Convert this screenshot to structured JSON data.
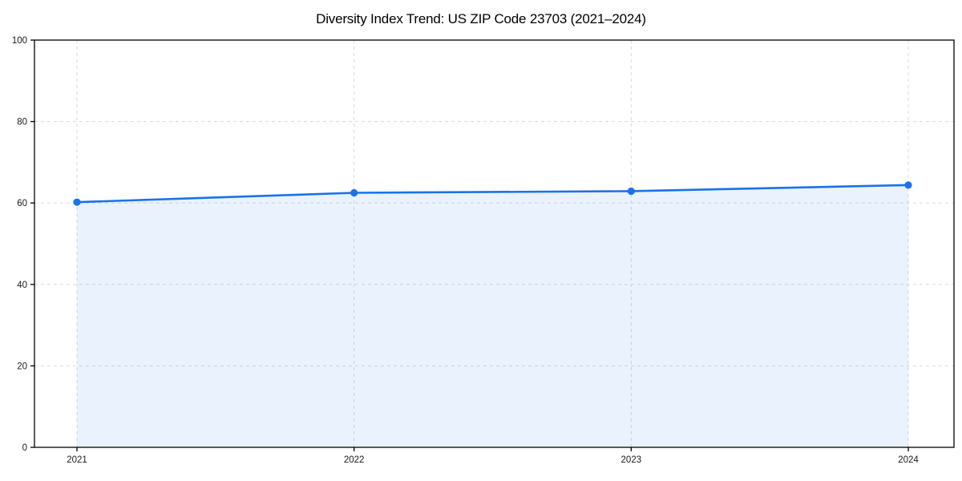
{
  "chart_data": {
    "type": "line",
    "title": "Diversity Index Trend: US ZIP Code 23703 (2021–2024)",
    "x": [
      2021,
      2022,
      2023,
      2024
    ],
    "series": [
      {
        "name": "Diversity Index",
        "values": [
          60.2,
          62.5,
          62.9,
          64.4
        ]
      }
    ],
    "xlabel": "",
    "ylabel": "",
    "ylim": [
      0,
      100
    ],
    "yticks": [
      0,
      20,
      40,
      60,
      80,
      100
    ],
    "xtick_labels": [
      "2021",
      "2022",
      "2023",
      "2024"
    ],
    "grid": true,
    "grid_style": "dashed",
    "legend_position": "none",
    "marker": "circle",
    "area_fill": true,
    "colors": {
      "line": "#1a73e8",
      "marker": "#1a73e8",
      "fill": "rgba(26,115,232,0.09)",
      "grid": "#d9d9d9",
      "spine": "#000000",
      "tick_text": "#1a1a1a",
      "title_text": "#000000",
      "background": "#ffffff"
    }
  }
}
